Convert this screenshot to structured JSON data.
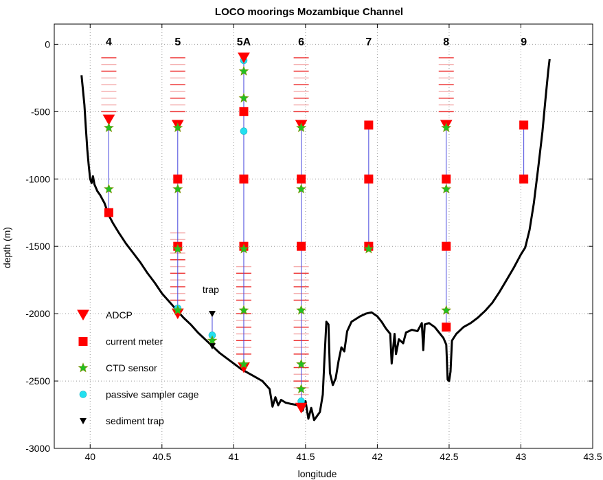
{
  "chart_data": {
    "type": "scatter",
    "title": "LOCO moorings Mozambique Channel",
    "xlabel": "longitude",
    "ylabel": "depth (m)",
    "xlim": [
      39.75,
      43.5
    ],
    "ylim": [
      -3000,
      150
    ],
    "xticks": [
      40,
      40.5,
      41,
      41.5,
      42,
      42.5,
      43,
      43.5
    ],
    "xtick_labels": [
      "40",
      "40.5",
      "41",
      "41.5",
      "42",
      "42.5",
      "43",
      "43.5"
    ],
    "yticks": [
      0,
      -500,
      -1000,
      -1500,
      -2000,
      -2500,
      -3000
    ],
    "ytick_labels": [
      "0",
      "-500",
      "-1000",
      "-1500",
      "-2000",
      "-2500",
      "-3000"
    ],
    "grid": true,
    "legend_position": "lower-left",
    "colors": {
      "bathymetry": "#000000",
      "mooring_line": "#4444dd",
      "marker_red": "#ff0000",
      "star_green": "#22c022",
      "passive_cyan": "#22e0f0",
      "trap_black": "#000000",
      "dash_strong": "#ee3333",
      "dash_light": "#f5b0b0",
      "grid": "#999999"
    },
    "legend": [
      {
        "key": "adcp",
        "label": "ADCP"
      },
      {
        "key": "current_meter",
        "label": "current meter"
      },
      {
        "key": "ctd",
        "label": "CTD sensor"
      },
      {
        "key": "passive",
        "label": "passive sampler cage"
      },
      {
        "key": "trap",
        "label": "sediment trap"
      }
    ],
    "annotations": [
      {
        "text": "trap",
        "x": 40.84,
        "y": -1820
      }
    ],
    "moorings": [
      {
        "name": "4",
        "x": 40.13,
        "line_top": -560,
        "line_bottom": -1250,
        "adcp": [
          -560
        ],
        "current_meter": [
          -1250
        ],
        "ctd": [
          -620,
          -1075
        ],
        "passive": [],
        "trap": [],
        "dashes_strong": [
          -100,
          -200,
          -500
        ],
        "dashes_light": [
          -150,
          -250,
          -300,
          -350,
          -400,
          -450
        ]
      },
      {
        "name": "5",
        "x": 40.61,
        "line_top": -600,
        "line_bottom": -2000,
        "adcp": [
          -600,
          -2000
        ],
        "current_meter": [
          -1000,
          -1500
        ],
        "ctd": [
          -620,
          -1075,
          -1520,
          -1975
        ],
        "passive": [
          -1960
        ],
        "trap": [],
        "dashes_strong": [
          -100,
          -200,
          -300,
          -400,
          -500,
          -1600,
          -1700,
          -1800,
          -1900
        ],
        "dashes_light": [
          -150,
          -250,
          -350,
          -450,
          -1400,
          -1450,
          -1550,
          -1650,
          -1750,
          -1850
        ]
      },
      {
        "name": "5A",
        "x": 41.07,
        "line_top": -100,
        "line_bottom": -2400,
        "adcp": [
          -100,
          -2400
        ],
        "current_meter": [
          -500,
          -1000,
          -1500
        ],
        "ctd": [
          -200,
          -400,
          -1520,
          -1975,
          -2375
        ],
        "passive": [
          -120,
          -645
        ],
        "trap": [],
        "dashes_strong": [
          -1700,
          -1800,
          -1900,
          -2000,
          -2100,
          -2200,
          -2300
        ],
        "dashes_light": [
          -1650,
          -1750,
          -1850,
          -2050,
          -2150,
          -2250
        ]
      },
      {
        "name": "6",
        "x": 41.47,
        "line_top": -600,
        "line_bottom": -2700,
        "adcp": [
          -600,
          -2700
        ],
        "current_meter": [
          -1000,
          -1500
        ],
        "ctd": [
          -620,
          -1075,
          -1975,
          -2375,
          -2560
        ],
        "passive": [
          -2650
        ],
        "trap": [],
        "dashes_strong": [
          -100,
          -200,
          -300,
          -400,
          -500,
          -1700,
          -1800,
          -1900,
          -2100,
          -2200,
          -2300,
          -2400,
          -2500
        ],
        "dashes_light": [
          -150,
          -250,
          -350,
          -450,
          -1650,
          -1750,
          -1850,
          -2050,
          -2150,
          -2250,
          -2450,
          -2550,
          -2600
        ]
      },
      {
        "name": "7",
        "x": 41.94,
        "line_top": -600,
        "line_bottom": -1520,
        "adcp": [],
        "current_meter": [
          -600,
          -1000,
          -1500
        ],
        "ctd": [
          -1520
        ],
        "passive": [],
        "trap": [],
        "dashes_strong": [],
        "dashes_light": []
      },
      {
        "name": "8",
        "x": 42.48,
        "line_top": -600,
        "line_bottom": -2100,
        "adcp": [
          -600
        ],
        "current_meter": [
          -1000,
          -1500,
          -2100
        ],
        "ctd": [
          -620,
          -1075,
          -1975
        ],
        "passive": [],
        "trap": [],
        "dashes_strong": [
          -100,
          -200,
          -300,
          -400,
          -500
        ],
        "dashes_light": [
          -150,
          -250,
          -350,
          -450
        ]
      },
      {
        "name": "9",
        "x": 43.02,
        "line_top": -600,
        "line_bottom": -1000,
        "adcp": [],
        "current_meter": [
          -600,
          -1000
        ],
        "ctd": [],
        "passive": [],
        "trap": [],
        "dashes_strong": [],
        "dashes_light": []
      },
      {
        "name": "",
        "x": 40.85,
        "line_top": -2000,
        "line_bottom": -2240,
        "adcp": [],
        "current_meter": [],
        "ctd": [
          -2200
        ],
        "passive": [
          -2160
        ],
        "trap": [
          -2000,
          -2240
        ],
        "dashes_strong": [],
        "dashes_light": []
      }
    ],
    "bathymetry": [
      [
        39.94,
        -230
      ],
      [
        39.96,
        -450
      ],
      [
        39.97,
        -620
      ],
      [
        39.98,
        -780
      ],
      [
        39.99,
        -900
      ],
      [
        40.0,
        -1000
      ],
      [
        40.01,
        -1030
      ],
      [
        40.02,
        -980
      ],
      [
        40.03,
        -1040
      ],
      [
        40.05,
        -1090
      ],
      [
        40.07,
        -1120
      ],
      [
        40.1,
        -1180
      ],
      [
        40.13,
        -1270
      ],
      [
        40.16,
        -1330
      ],
      [
        40.2,
        -1400
      ],
      [
        40.25,
        -1480
      ],
      [
        40.3,
        -1550
      ],
      [
        40.35,
        -1620
      ],
      [
        40.4,
        -1700
      ],
      [
        40.45,
        -1770
      ],
      [
        40.5,
        -1850
      ],
      [
        40.55,
        -1910
      ],
      [
        40.6,
        -1970
      ],
      [
        40.65,
        -2030
      ],
      [
        40.7,
        -2080
      ],
      [
        40.75,
        -2140
      ],
      [
        40.8,
        -2190
      ],
      [
        40.85,
        -2240
      ],
      [
        40.9,
        -2290
      ],
      [
        40.95,
        -2330
      ],
      [
        41.0,
        -2370
      ],
      [
        41.05,
        -2410
      ],
      [
        41.1,
        -2440
      ],
      [
        41.15,
        -2470
      ],
      [
        41.2,
        -2500
      ],
      [
        41.25,
        -2560
      ],
      [
        41.27,
        -2690
      ],
      [
        41.29,
        -2620
      ],
      [
        41.31,
        -2680
      ],
      [
        41.33,
        -2640
      ],
      [
        41.36,
        -2660
      ],
      [
        41.4,
        -2670
      ],
      [
        41.45,
        -2680
      ],
      [
        41.48,
        -2720
      ],
      [
        41.5,
        -2650
      ],
      [
        41.52,
        -2780
      ],
      [
        41.54,
        -2700
      ],
      [
        41.56,
        -2790
      ],
      [
        41.58,
        -2760
      ],
      [
        41.6,
        -2730
      ],
      [
        41.62,
        -2600
      ],
      [
        41.63,
        -2380
      ],
      [
        41.645,
        -2060
      ],
      [
        41.66,
        -2080
      ],
      [
        41.67,
        -2440
      ],
      [
        41.69,
        -2530
      ],
      [
        41.71,
        -2480
      ],
      [
        41.73,
        -2350
      ],
      [
        41.75,
        -2250
      ],
      [
        41.77,
        -2280
      ],
      [
        41.79,
        -2130
      ],
      [
        41.82,
        -2060
      ],
      [
        41.85,
        -2040
      ],
      [
        41.88,
        -2020
      ],
      [
        41.92,
        -2000
      ],
      [
        41.96,
        -1990
      ],
      [
        42.0,
        -2020
      ],
      [
        42.03,
        -2060
      ],
      [
        42.06,
        -2110
      ],
      [
        42.09,
        -2150
      ],
      [
        42.1,
        -2370
      ],
      [
        42.12,
        -2150
      ],
      [
        42.13,
        -2300
      ],
      [
        42.15,
        -2190
      ],
      [
        42.18,
        -2220
      ],
      [
        42.2,
        -2140
      ],
      [
        42.24,
        -2120
      ],
      [
        42.28,
        -2130
      ],
      [
        42.31,
        -2070
      ],
      [
        42.32,
        -2270
      ],
      [
        42.33,
        -2080
      ],
      [
        42.36,
        -2070
      ],
      [
        42.4,
        -2100
      ],
      [
        42.43,
        -2140
      ],
      [
        42.46,
        -2180
      ],
      [
        42.48,
        -2230
      ],
      [
        42.49,
        -2490
      ],
      [
        42.5,
        -2500
      ],
      [
        42.51,
        -2430
      ],
      [
        42.52,
        -2200
      ],
      [
        42.55,
        -2150
      ],
      [
        42.6,
        -2100
      ],
      [
        42.65,
        -2070
      ],
      [
        42.7,
        -2030
      ],
      [
        42.75,
        -1980
      ],
      [
        42.8,
        -1920
      ],
      [
        42.85,
        -1840
      ],
      [
        42.9,
        -1750
      ],
      [
        42.95,
        -1660
      ],
      [
        43.0,
        -1560
      ],
      [
        43.03,
        -1510
      ],
      [
        43.06,
        -1380
      ],
      [
        43.09,
        -1180
      ],
      [
        43.12,
        -920
      ],
      [
        43.15,
        -650
      ],
      [
        43.17,
        -420
      ],
      [
        43.19,
        -200
      ],
      [
        43.2,
        -110
      ]
    ]
  }
}
